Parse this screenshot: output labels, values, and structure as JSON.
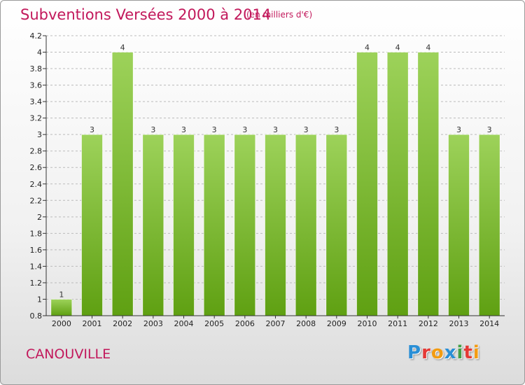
{
  "header": {
    "title": "Subventions Versées 2000 à 2014",
    "unit": "(en milliers d'€)"
  },
  "footer": {
    "commune": "CANOUVILLE",
    "logo_text": "Proxiti",
    "logo_colors": [
      "#2a8fd6",
      "#e53935",
      "#f39c12",
      "#2a8fd6",
      "#43a047",
      "#e53935",
      "#f39c12"
    ]
  },
  "colors": {
    "title": "#c2185b",
    "bar_top": "#9dd25a",
    "bar_bottom": "#5fa012",
    "grid": "#bbbbbb"
  },
  "chart_data": {
    "type": "bar",
    "title": "Subventions Versées 2000 à 2014",
    "subtitle": "(en milliers d'€)",
    "xlabel": "",
    "ylabel": "",
    "categories": [
      "2000",
      "2001",
      "2002",
      "2003",
      "2004",
      "2005",
      "2006",
      "2007",
      "2008",
      "2009",
      "2010",
      "2011",
      "2012",
      "2013",
      "2014"
    ],
    "values": [
      1,
      3,
      4,
      3,
      3,
      3,
      3,
      3,
      3,
      3,
      4,
      4,
      4,
      3,
      3
    ],
    "ylim": [
      0.8,
      4.2
    ],
    "yticks": [
      "0.8",
      "1",
      "1.2",
      "1.4",
      "1.6",
      "1.8",
      "2",
      "2.2",
      "2.4",
      "2.6",
      "2.8",
      "3",
      "3.2",
      "3.4",
      "3.6",
      "3.8",
      "4",
      "4.2"
    ],
    "grid": "horizontal dashed",
    "legend": "none"
  }
}
